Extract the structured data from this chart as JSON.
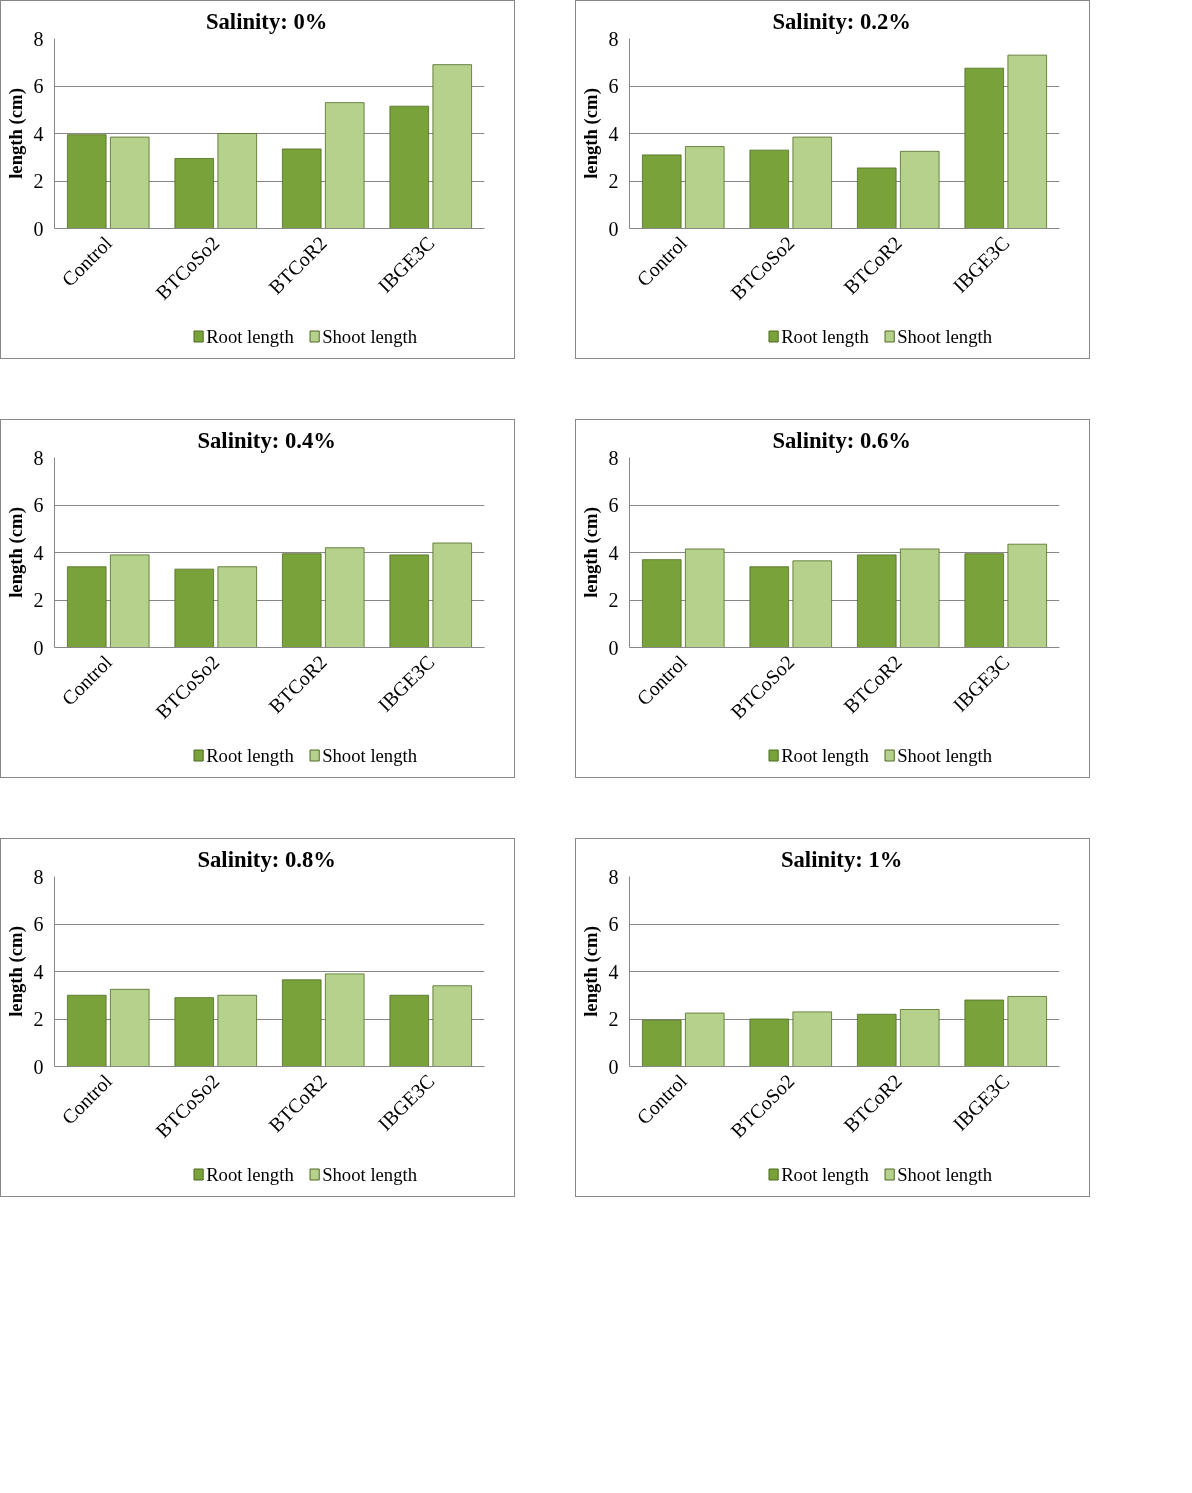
{
  "chart_data": [
    {
      "type": "bar",
      "title": "Salinity:  0%",
      "ylabel": "length (cm)",
      "categories": [
        "Control",
        "BTCoSo2",
        "BTCoR2",
        "IBGE3C"
      ],
      "ylim": [
        0,
        8
      ],
      "yticks": [
        0,
        2,
        4,
        6,
        8
      ],
      "grid": "y",
      "legend": "bottom",
      "series": [
        {
          "name": "Root length",
          "color": "#7aa23a",
          "values": [
            3.95,
            2.95,
            3.35,
            5.15
          ]
        },
        {
          "name": "Shoot length",
          "color": "#b5d18c",
          "values": [
            3.85,
            4.0,
            5.3,
            6.9
          ]
        }
      ]
    },
    {
      "type": "bar",
      "title": "Salinity:  0.2%",
      "ylabel": "length (cm)",
      "categories": [
        "Control",
        "BTCoSo2",
        "BTCoR2",
        "IBGE3C"
      ],
      "ylim": [
        0,
        8
      ],
      "yticks": [
        0,
        2,
        4,
        6,
        8
      ],
      "grid": "y",
      "legend": "bottom",
      "series": [
        {
          "name": "Root length",
          "color": "#7aa23a",
          "values": [
            3.1,
            3.3,
            2.55,
            6.75
          ]
        },
        {
          "name": "Shoot length",
          "color": "#b5d18c",
          "values": [
            3.45,
            3.85,
            3.25,
            7.3
          ]
        }
      ]
    },
    {
      "type": "bar",
      "title": "Salinity:  0.4%",
      "ylabel": "length (cm)",
      "categories": [
        "Control",
        "BTCoSo2",
        "BTCoR2",
        "IBGE3C"
      ],
      "ylim": [
        0,
        8
      ],
      "yticks": [
        0,
        2,
        4,
        6,
        8
      ],
      "grid": "y",
      "legend": "bottom",
      "series": [
        {
          "name": "Root length",
          "color": "#7aa23a",
          "values": [
            3.4,
            3.3,
            3.95,
            3.9
          ]
        },
        {
          "name": "Shoot length",
          "color": "#b5d18c",
          "values": [
            3.9,
            3.4,
            4.2,
            4.4
          ]
        }
      ]
    },
    {
      "type": "bar",
      "title": "Salinity:  0.6%",
      "ylabel": "length (cm)",
      "categories": [
        "Control",
        "BTCoSo2",
        "BTCoR2",
        "IBGE3C"
      ],
      "ylim": [
        0,
        8
      ],
      "yticks": [
        0,
        2,
        4,
        6,
        8
      ],
      "grid": "y",
      "legend": "bottom",
      "series": [
        {
          "name": "Root length",
          "color": "#7aa23a",
          "values": [
            3.7,
            3.4,
            3.9,
            3.95
          ]
        },
        {
          "name": "Shoot length",
          "color": "#b5d18c",
          "values": [
            4.15,
            3.65,
            4.15,
            4.35
          ]
        }
      ]
    },
    {
      "type": "bar",
      "title": "Salinity:  0.8%",
      "ylabel": "length (cm)",
      "categories": [
        "Control",
        "BTCoSo2",
        "BTCoR2",
        "IBGE3C"
      ],
      "ylim": [
        0,
        8
      ],
      "yticks": [
        0,
        2,
        4,
        6,
        8
      ],
      "grid": "y",
      "legend": "bottom",
      "series": [
        {
          "name": "Root length",
          "color": "#7aa23a",
          "values": [
            3.0,
            2.9,
            3.65,
            3.0
          ]
        },
        {
          "name": "Shoot length",
          "color": "#b5d18c",
          "values": [
            3.25,
            3.0,
            3.9,
            3.4
          ]
        }
      ]
    },
    {
      "type": "bar",
      "title": "Salinity:  1%",
      "ylabel": "length (cm)",
      "categories": [
        "Control",
        "BTCoSo2",
        "BTCoR2",
        "IBGE3C"
      ],
      "ylim": [
        0,
        8
      ],
      "yticks": [
        0,
        2,
        4,
        6,
        8
      ],
      "grid": "y",
      "legend": "bottom",
      "series": [
        {
          "name": "Root length",
          "color": "#7aa23a",
          "values": [
            1.95,
            2.0,
            2.2,
            2.8
          ]
        },
        {
          "name": "Shoot length",
          "color": "#b5d18c",
          "values": [
            2.25,
            2.3,
            2.4,
            2.95
          ]
        }
      ]
    }
  ]
}
